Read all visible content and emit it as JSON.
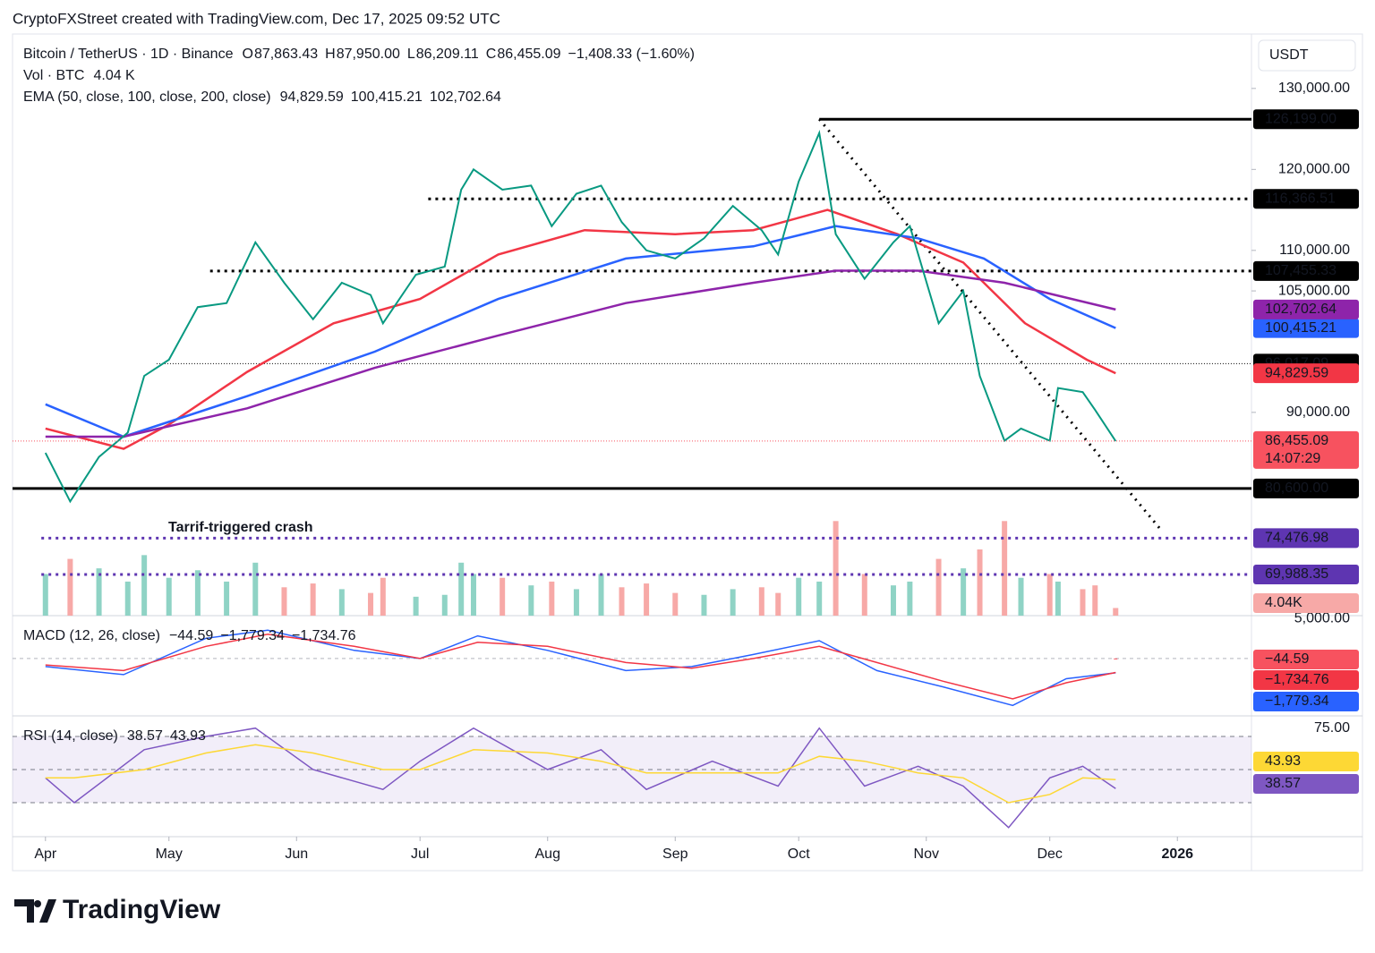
{
  "chart_data": {
    "type": "line",
    "watermark": "CryptoFXStreet created with TradingView.com, Dec 17, 2025 09:52 UTC",
    "symbol": "Bitcoin / TetherUS · 1D · Binance",
    "ohlc": [
      {
        "label": "O",
        "value": "87,863.43"
      },
      {
        "label": "H",
        "value": "87,950.00"
      },
      {
        "label": "L",
        "value": "86,209.11"
      },
      {
        "label": "C",
        "value": "86,455.09"
      }
    ],
    "change": "−1,408.33 (−1.60%)",
    "vol_label": "Vol · BTC",
    "vol_value": "4.04 K",
    "ema_label": "EMA (50, close, 100, close, 200, close)",
    "axis_unit": "USDT",
    "brand": "TradingView",
    "annotation": {
      "text": "Tarrif-triggered crash",
      "color": "#2962ff"
    },
    "xlim": [
      "2025-03-24",
      "2026-01-19"
    ],
    "xticks": [
      {
        "value": "2025-04-01",
        "label": "Apr"
      },
      {
        "value": "2025-05-01",
        "label": "May"
      },
      {
        "value": "2025-06-01",
        "label": "Jun"
      },
      {
        "value": "2025-07-01",
        "label": "Jul"
      },
      {
        "value": "2025-08-01",
        "label": "Aug"
      },
      {
        "value": "2025-09-01",
        "label": "Sep"
      },
      {
        "value": "2025-10-01",
        "label": "Oct"
      },
      {
        "value": "2025-11-01",
        "label": "Nov"
      },
      {
        "value": "2025-12-01",
        "label": "Dec"
      },
      {
        "value": "2026-01-01",
        "label": "2026"
      }
    ],
    "ylim": [
      64900,
      136500
    ],
    "yticks": [
      {
        "value": 90000,
        "label": "90,000.00"
      },
      {
        "value": 105000,
        "label": "105,000.00"
      },
      {
        "value": 110000,
        "label": "110,000.00"
      },
      {
        "value": 120000,
        "label": "120,000.00"
      },
      {
        "value": 130000,
        "label": "130,000.00"
      }
    ],
    "price": {
      "color": "#089981",
      "down_color": "#f23645",
      "value_label": "86,455.09",
      "countdown": "14:07:29",
      "tag_color": "#f7525f",
      "x": [
        "2025-04-01",
        "2025-04-07",
        "2025-04-14",
        "2025-04-21",
        "2025-04-25",
        "2025-05-01",
        "2025-05-08",
        "2025-05-15",
        "2025-05-22",
        "2025-05-29",
        "2025-06-05",
        "2025-06-12",
        "2025-06-19",
        "2025-06-22",
        "2025-06-30",
        "2025-07-07",
        "2025-07-11",
        "2025-07-14",
        "2025-07-21",
        "2025-07-28",
        "2025-08-02",
        "2025-08-08",
        "2025-08-14",
        "2025-08-19",
        "2025-08-25",
        "2025-09-01",
        "2025-09-08",
        "2025-09-15",
        "2025-09-22",
        "2025-09-26",
        "2025-10-01",
        "2025-10-06",
        "2025-10-10",
        "2025-10-17",
        "2025-10-24",
        "2025-10-28",
        "2025-11-04",
        "2025-11-10",
        "2025-11-14",
        "2025-11-20",
        "2025-11-24",
        "2025-12-01",
        "2025-12-03",
        "2025-12-09",
        "2025-12-12",
        "2025-12-17"
      ],
      "values": [
        85000,
        79000,
        84500,
        87500,
        94500,
        96500,
        103000,
        103500,
        111000,
        106000,
        101500,
        106000,
        104500,
        101000,
        107000,
        108000,
        117500,
        120000,
        117500,
        118000,
        113000,
        117000,
        118000,
        113500,
        110000,
        109000,
        111500,
        115500,
        112500,
        109500,
        118500,
        124500,
        112000,
        106500,
        111000,
        113000,
        101000,
        105000,
        94500,
        86500,
        88000,
        86500,
        93000,
        92500,
        90300,
        86455.09
      ]
    },
    "volume": {
      "ylim": [
        0,
        70000
      ],
      "yticks": [
        {
          "value": 5000,
          "label": "5,000.00"
        }
      ],
      "tag_label": "4.04K",
      "tag_color": "#f7a9a7",
      "up_color": "#8fd3c5",
      "down_color": "#f7a9a7",
      "values": [
        22000,
        30000,
        25000,
        18000,
        32000,
        20000,
        24000,
        18000,
        28000,
        15000,
        17000,
        14000,
        12000,
        20000,
        10000,
        11000,
        28000,
        22000,
        20000,
        16000,
        18000,
        14000,
        22000,
        15000,
        17000,
        12000,
        11000,
        14000,
        15000,
        12000,
        20000,
        18000,
        50000,
        22000,
        16000,
        18000,
        30000,
        25000,
        35000,
        50000,
        20000,
        22000,
        18000,
        14000,
        16000,
        4040
      ]
    },
    "ema": [
      {
        "color": "#f23645",
        "value_label": "94,829.59",
        "x": [
          "2025-04-01",
          "2025-04-20",
          "2025-05-01",
          "2025-05-20",
          "2025-06-10",
          "2025-07-01",
          "2025-07-20",
          "2025-08-10",
          "2025-09-01",
          "2025-09-20",
          "2025-10-08",
          "2025-10-25",
          "2025-11-10",
          "2025-11-25",
          "2025-12-10",
          "2025-12-17"
        ],
        "values": [
          88000,
          85500,
          88500,
          95000,
          101000,
          104000,
          109500,
          112500,
          112000,
          112500,
          115000,
          112000,
          108500,
          101000,
          96500,
          94829.59
        ]
      },
      {
        "color": "#2962ff",
        "value_label": "100,415.21",
        "x": [
          "2025-04-01",
          "2025-04-20",
          "2025-05-20",
          "2025-06-20",
          "2025-07-20",
          "2025-08-20",
          "2025-09-20",
          "2025-10-10",
          "2025-10-30",
          "2025-11-15",
          "2025-12-01",
          "2025-12-17"
        ],
        "values": [
          91000,
          87000,
          92000,
          97500,
          104000,
          109000,
          110500,
          113000,
          111500,
          109000,
          104000,
          100415.21
        ]
      },
      {
        "color": "#8e24aa",
        "value_label": "102,702.64",
        "x": [
          "2025-04-01",
          "2025-04-20",
          "2025-05-20",
          "2025-06-20",
          "2025-07-20",
          "2025-08-20",
          "2025-09-20",
          "2025-10-10",
          "2025-10-30",
          "2025-11-20",
          "2025-12-17"
        ],
        "values": [
          87000,
          87000,
          90500,
          95500,
          99500,
          103500,
          106000,
          107500,
          107500,
          106000,
          102702.64
        ]
      }
    ],
    "levels": [
      {
        "value": 126199,
        "label": "126,199.00",
        "from": "2025-10-06",
        "style": "solid",
        "color": "#000000"
      },
      {
        "value": 116366.51,
        "label": "116,366.51",
        "from": "2025-07-03",
        "style": "dotted",
        "color": "#000000"
      },
      {
        "value": 107455.33,
        "label": "107,455.33",
        "from": "2025-05-11",
        "style": "dotted",
        "color": "#000000"
      },
      {
        "value": 96017.09,
        "label": "96,017.09",
        "from": "2025-04-28",
        "style": "thin",
        "color": "#000000"
      },
      {
        "value": 80600,
        "label": "80,600.00",
        "from": "2025-03-24",
        "style": "solid",
        "color": "#000000"
      },
      {
        "value": 74476.98,
        "label": "74,476.98",
        "from": "2025-03-31",
        "style": "dotted",
        "color": "#5e35b1"
      },
      {
        "value": 69988.35,
        "label": "69,988.35",
        "from": "2025-03-31",
        "style": "dotted",
        "color": "#5e35b1"
      }
    ],
    "trendline": {
      "x": [
        "2025-10-06",
        "2025-12-28"
      ],
      "values": [
        126199,
        75500
      ]
    },
    "macd": {
      "label": "MACD (12, 26, close)",
      "ylim": [
        -7100,
        5300
      ],
      "histogram": {
        "value": -44.59,
        "value_label": "−44.59",
        "color": "#f7525f"
      },
      "x": [
        "2025-04-01",
        "2025-04-20",
        "2025-05-10",
        "2025-05-25",
        "2025-06-15",
        "2025-07-01",
        "2025-07-15",
        "2025-08-01",
        "2025-08-20",
        "2025-09-05",
        "2025-09-20",
        "2025-10-06",
        "2025-10-20",
        "2025-11-05",
        "2025-11-22",
        "2025-12-05",
        "2025-12-17"
      ],
      "lines": [
        {
          "color": "#2962ff",
          "value_label": "−1,779.34",
          "values": [
            -1000,
            -2000,
            2500,
            3500,
            1000,
            0,
            2800,
            1000,
            -1500,
            -1000,
            500,
            2200,
            -1500,
            -3500,
            -5800,
            -2500,
            -1779.34
          ]
        },
        {
          "color": "#f23645",
          "value_label": "−1,734.76",
          "values": [
            -800,
            -1500,
            1500,
            3000,
            1500,
            0,
            2000,
            1500,
            -500,
            -1200,
            0,
            1500,
            -500,
            -2800,
            -5000,
            -3000,
            -1734.76
          ]
        }
      ]
    },
    "rsi": {
      "label": "RSI (14, close)",
      "ylim": [
        9.5,
        82.4
      ],
      "yticks": [
        {
          "value": 75,
          "label": "75.00"
        }
      ],
      "levels": [
        70,
        50,
        30
      ],
      "x": [
        "2025-04-01",
        "2025-04-08",
        "2025-04-25",
        "2025-05-10",
        "2025-05-22",
        "2025-06-05",
        "2025-06-22",
        "2025-07-01",
        "2025-07-14",
        "2025-08-01",
        "2025-08-14",
        "2025-08-25",
        "2025-09-10",
        "2025-09-26",
        "2025-10-06",
        "2025-10-17",
        "2025-10-30",
        "2025-11-10",
        "2025-11-21",
        "2025-12-01",
        "2025-12-09",
        "2025-12-17"
      ],
      "lines": [
        {
          "color": "#7e57c2",
          "value_label": "38.57",
          "text_color": "#ffffff",
          "values": [
            45,
            30,
            62,
            70,
            75,
            50,
            38,
            55,
            75,
            50,
            62,
            38,
            55,
            40,
            75,
            40,
            52,
            40,
            15,
            45,
            52,
            38.57
          ]
        },
        {
          "color": "#fdd835",
          "value_label": "43.93",
          "text_color": "#000000",
          "values": [
            45,
            45,
            50,
            60,
            65,
            60,
            50,
            50,
            62,
            60,
            55,
            48,
            48,
            48,
            58,
            55,
            48,
            45,
            30,
            35,
            45,
            43.93
          ]
        }
      ]
    }
  }
}
